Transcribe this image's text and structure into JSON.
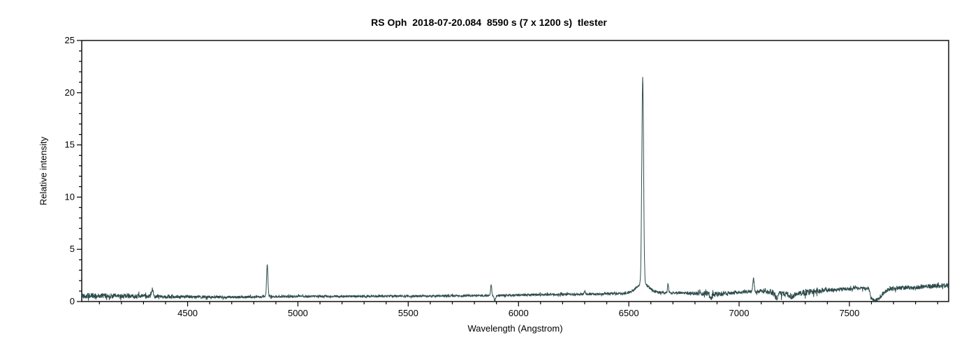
{
  "chart_data": {
    "type": "line",
    "title": "RS Oph  2018-07-20.084  8590 s (7 x 1200 s)  tlester",
    "xlabel": "Wavelength (Angstrom)",
    "ylabel": "Relative intensity",
    "xlim": [
      4020,
      7950
    ],
    "ylim": [
      0,
      25
    ],
    "x_major_ticks": [
      4500,
      5000,
      5500,
      6000,
      6500,
      7000,
      7500
    ],
    "x_minor_step": 100,
    "y_major_ticks": [
      0,
      5,
      10,
      15,
      20,
      25
    ],
    "y_minor_step": 1,
    "grid": false,
    "legend": "none",
    "line_color": "#2e4c4c",
    "axis_color": "#000000",
    "background_color": "#ffffff",
    "series_name": "RS Oph relative-intensity spectrum",
    "features": [
      {
        "name": "H-gamma emission",
        "wavelength": 4341,
        "peak_intensity": 1.3
      },
      {
        "name": "H-beta emission",
        "wavelength": 4861,
        "peak_intensity": 3.5
      },
      {
        "name": "He I 5876 emission",
        "wavelength": 5876,
        "peak_intensity": 1.65
      },
      {
        "name": "Na D absorption dip",
        "wavelength": 5892,
        "min_intensity": 0.0
      },
      {
        "name": "[O I] 6300 emission",
        "wavelength": 6300,
        "peak_intensity": 1.1
      },
      {
        "name": "H-alpha emission",
        "wavelength": 6563,
        "peak_intensity": 21.4
      },
      {
        "name": "He I 6678 emission",
        "wavelength": 6678,
        "peak_intensity": 1.6
      },
      {
        "name": "telluric O2 B-band absorption",
        "wavelength": 6870,
        "min_intensity": 0.35
      },
      {
        "name": "He I 7065 emission",
        "wavelength": 7065,
        "peak_intensity": 2.2
      },
      {
        "name": "telluric H2O band noise",
        "wavelength": 7250,
        "min_intensity": 0.1
      },
      {
        "name": "telluric O2 A-band absorption",
        "wavelength": 7610,
        "min_intensity": 0.05
      }
    ],
    "baseline_points": [
      [
        4020,
        0.55
      ],
      [
        4150,
        0.55
      ],
      [
        4300,
        0.5
      ],
      [
        4500,
        0.45
      ],
      [
        4700,
        0.42
      ],
      [
        4820,
        0.45
      ],
      [
        4900,
        0.48
      ],
      [
        5100,
        0.5
      ],
      [
        5300,
        0.5
      ],
      [
        5500,
        0.52
      ],
      [
        5700,
        0.55
      ],
      [
        5900,
        0.58
      ],
      [
        6100,
        0.65
      ],
      [
        6300,
        0.7
      ],
      [
        6450,
        0.75
      ],
      [
        6550,
        0.85
      ],
      [
        6650,
        0.85
      ],
      [
        6800,
        0.8
      ],
      [
        6860,
        0.8
      ],
      [
        6890,
        0.7
      ],
      [
        6950,
        0.8
      ],
      [
        7050,
        0.95
      ],
      [
        7120,
        1.0
      ],
      [
        7170,
        0.75
      ],
      [
        7230,
        0.65
      ],
      [
        7300,
        0.85
      ],
      [
        7360,
        1.05
      ],
      [
        7450,
        1.15
      ],
      [
        7550,
        1.3
      ],
      [
        7588,
        1.25
      ],
      [
        7598,
        0.3
      ],
      [
        7612,
        0.12
      ],
      [
        7635,
        0.25
      ],
      [
        7655,
        0.8
      ],
      [
        7675,
        1.15
      ],
      [
        7720,
        1.3
      ],
      [
        7800,
        1.35
      ],
      [
        7880,
        1.5
      ],
      [
        7950,
        1.55
      ]
    ],
    "noise_amplitude_points": [
      [
        4020,
        0.28
      ],
      [
        4250,
        0.22
      ],
      [
        4450,
        0.16
      ],
      [
        4700,
        0.12
      ],
      [
        5000,
        0.1
      ],
      [
        5600,
        0.1
      ],
      [
        6000,
        0.11
      ],
      [
        6500,
        0.11
      ],
      [
        6750,
        0.12
      ],
      [
        6860,
        0.28
      ],
      [
        6960,
        0.16
      ],
      [
        7060,
        0.16
      ],
      [
        7150,
        0.3
      ],
      [
        7340,
        0.3
      ],
      [
        7420,
        0.18
      ],
      [
        7580,
        0.15
      ],
      [
        7615,
        0.12
      ],
      [
        7680,
        0.2
      ],
      [
        7950,
        0.22
      ]
    ],
    "peaks_model": [
      {
        "center": 4341,
        "height": 0.72,
        "sigma": 3
      },
      {
        "center": 4861,
        "height": 3.05,
        "sigma": 3
      },
      {
        "center": 5876,
        "height": 1.05,
        "sigma": 2.5
      },
      {
        "center": 5893,
        "height": -0.6,
        "sigma": 3
      },
      {
        "center": 6300,
        "height": 0.4,
        "sigma": 2.5
      },
      {
        "center": 6563,
        "height": 0.85,
        "sigma": 28
      },
      {
        "center": 6563,
        "height": 19.7,
        "sigma": 4
      },
      {
        "center": 6678,
        "height": 0.8,
        "sigma": 2.5
      },
      {
        "center": 6872,
        "height": -0.45,
        "sigma": 5
      },
      {
        "center": 7065,
        "height": 1.25,
        "sigma": 3
      },
      {
        "center": 7170,
        "height": -0.35,
        "sigma": 7
      },
      {
        "center": 7244,
        "height": -0.3,
        "sigma": 7
      }
    ]
  }
}
